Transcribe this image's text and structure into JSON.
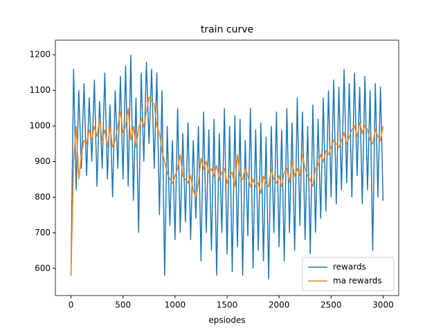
{
  "chart_data": {
    "type": "line",
    "title": "train curve",
    "x_label": "epsiodes",
    "x": [
      0,
      25,
      50,
      75,
      100,
      125,
      150,
      175,
      200,
      225,
      250,
      275,
      300,
      325,
      350,
      375,
      400,
      425,
      450,
      475,
      500,
      525,
      550,
      575,
      600,
      625,
      650,
      675,
      700,
      725,
      750,
      775,
      800,
      825,
      850,
      875,
      900,
      925,
      950,
      975,
      1000,
      1025,
      1050,
      1075,
      1100,
      1125,
      1150,
      1175,
      1200,
      1225,
      1250,
      1275,
      1300,
      1325,
      1350,
      1375,
      1400,
      1425,
      1450,
      1475,
      1500,
      1525,
      1550,
      1575,
      1600,
      1625,
      1650,
      1675,
      1700,
      1725,
      1750,
      1775,
      1800,
      1825,
      1850,
      1875,
      1900,
      1925,
      1950,
      1975,
      2000,
      2025,
      2050,
      2075,
      2100,
      2125,
      2150,
      2175,
      2200,
      2225,
      2250,
      2275,
      2300,
      2325,
      2350,
      2375,
      2400,
      2425,
      2450,
      2475,
      2500,
      2525,
      2550,
      2575,
      2600,
      2625,
      2650,
      2675,
      2700,
      2725,
      2750,
      2775,
      2800,
      2825,
      2850,
      2875,
      2900,
      2925,
      2950,
      2975,
      3000
    ],
    "series": [
      {
        "name": "rewards",
        "color": "#1f77b4",
        "values": [
          580,
          1160,
          820,
          1100,
          880,
          1120,
          860,
          1080,
          900,
          1130,
          830,
          1070,
          880,
          1150,
          850,
          1060,
          800,
          1100,
          880,
          1140,
          850,
          1170,
          830,
          1200,
          790,
          1080,
          700,
          1150,
          900,
          1180,
          950,
          1160,
          880,
          1150,
          750,
          1100,
          580,
          1000,
          720,
          960,
          680,
          1050,
          700,
          980,
          730,
          1010,
          680,
          960,
          740,
          1000,
          620,
          1040,
          700,
          990,
          650,
          1020,
          580,
          980,
          700,
          1050,
          640,
          1000,
          590,
          1030,
          660,
          1020,
          580,
          960,
          690,
          1050,
          600,
          990,
          650,
          1010,
          620,
          970,
          570,
          1000,
          700,
          1040,
          660,
          990,
          620,
          1050,
          700,
          1010,
          650,
          1080,
          720,
          1040,
          680,
          1000,
          640,
          1060,
          700,
          1020,
          740,
          1080,
          760,
          1100,
          800,
          1130,
          780,
          1110,
          820,
          1160,
          840,
          1120,
          800,
          1150,
          860,
          1110,
          780,
          1140,
          820,
          1100,
          650,
          1120,
          800,
          1110,
          790
        ]
      },
      {
        "name": "ma rewards",
        "color": "#ff7f0e",
        "values": [
          580,
          900,
          1000,
          850,
          920,
          960,
          950,
          990,
          960,
          1000,
          970,
          1020,
          960,
          990,
          940,
          1000,
          940,
          960,
          1000,
          1040,
          980,
          1000,
          1050,
          960,
          1000,
          940,
          990,
          1020,
          1000,
          1040,
          1080,
          1070,
          1060,
          1000,
          980,
          930,
          900,
          870,
          850,
          840,
          860,
          880,
          920,
          860,
          850,
          840,
          860,
          820,
          800,
          840,
          910,
          880,
          900,
          870,
          880,
          860,
          890,
          850,
          870,
          880,
          840,
          860,
          870,
          830,
          920,
          860,
          850,
          880,
          860,
          830,
          850,
          830,
          840,
          810,
          860,
          840,
          830,
          880,
          850,
          840,
          860,
          830,
          870,
          880,
          840,
          900,
          860,
          880,
          860,
          920,
          880,
          860,
          850,
          830,
          880,
          890,
          920,
          900,
          930,
          920,
          940,
          960,
          950,
          940,
          960,
          980,
          950,
          970,
          990,
          1000,
          970,
          1010,
          980,
          1000,
          990,
          960,
          950,
          990,
          970,
          960,
          1000
        ]
      }
    ],
    "xlim": [
      -150,
      3150
    ],
    "ylim": [
      524,
      1241
    ],
    "xticks": [
      0,
      500,
      1000,
      1500,
      2000,
      2500,
      3000
    ],
    "yticks": [
      600,
      700,
      800,
      900,
      1000,
      1100,
      1200
    ],
    "legend": "lower right"
  }
}
